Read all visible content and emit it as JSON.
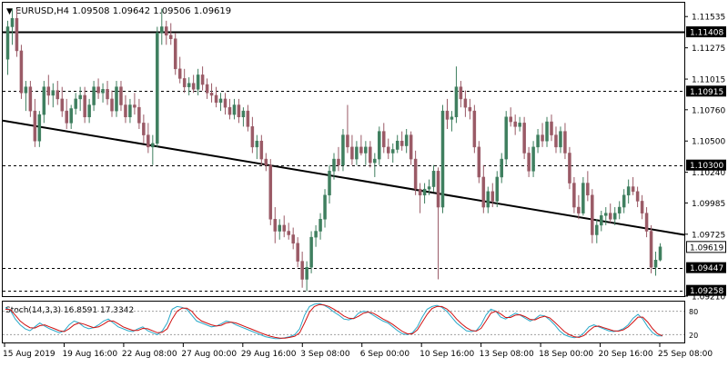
{
  "header": {
    "title": "EURUSD,H4  1.09508 1.09642 1.09506 1.09619",
    "triangle_icon": "triangle-down-icon"
  },
  "colors": {
    "background": "#ffffff",
    "frame": "#000000",
    "bull_candle": "#3f7f5f",
    "bear_candle": "#9a5a66",
    "trendline": "#000000",
    "grid_dashed": "#000000",
    "stoch_main": "#2aa9c9",
    "stoch_signal": "#d01010",
    "stoch_levels": "#a0a0a0"
  },
  "price_axis": {
    "ticks": [
      {
        "value": 1.11535,
        "label": "1.11535"
      },
      {
        "value": 1.11275,
        "label": "1.11275"
      },
      {
        "value": 1.11015,
        "label": "1.11015"
      },
      {
        "value": 1.1076,
        "label": "1.10760"
      },
      {
        "value": 1.105,
        "label": "1.10500"
      },
      {
        "value": 1.1024,
        "label": "1.10240"
      },
      {
        "value": 1.09985,
        "label": "1.09985"
      },
      {
        "value": 1.09725,
        "label": "1.09725"
      },
      {
        "value": 1.0921,
        "label": "1.09210"
      }
    ],
    "range": [
      1.0921,
      1.1165
    ]
  },
  "levels": [
    {
      "value": 1.11408,
      "label": "1.11408",
      "style": "solid"
    },
    {
      "value": 1.10915,
      "label": "1.10915",
      "style": "dashed"
    },
    {
      "value": 1.103,
      "label": "1.10300",
      "style": "dashed"
    },
    {
      "value": 1.09447,
      "label": "1.09447",
      "style": "dashed"
    },
    {
      "value": 1.09258,
      "label": "1.09258",
      "style": "dashed"
    }
  ],
  "current_price": {
    "value": 1.09619,
    "label": "1.09619"
  },
  "trendline": {
    "start_value": 1.1067,
    "end_value": 1.0972
  },
  "time_axis": {
    "labels": [
      "15 Aug 2019",
      "19 Aug 16:00",
      "22 Aug 08:00",
      "27 Aug 00:00",
      "29 Aug 16:00",
      "3 Sep 08:00",
      "6 Sep 00:00",
      "10 Sep 16:00",
      "13 Sep 08:00",
      "18 Sep 00:00",
      "20 Sep 16:00",
      "25 Sep 08:00"
    ]
  },
  "stochastic": {
    "title": "Stoch(14,3,3) 16.8591 17.3342",
    "range": [
      0,
      100
    ],
    "levels": [
      {
        "value": 80,
        "label": "80"
      },
      {
        "value": 20,
        "label": "20"
      }
    ],
    "main": [
      90,
      82,
      60,
      45,
      35,
      30,
      40,
      50,
      42,
      35,
      30,
      25,
      30,
      45,
      55,
      50,
      40,
      35,
      38,
      45,
      55,
      60,
      50,
      40,
      35,
      30,
      28,
      35,
      40,
      30,
      25,
      20,
      30,
      50,
      85,
      92,
      90,
      85,
      70,
      55,
      50,
      45,
      40,
      42,
      48,
      55,
      52,
      45,
      40,
      35,
      30,
      25,
      20,
      15,
      12,
      10,
      10,
      12,
      15,
      20,
      35,
      70,
      92,
      98,
      100,
      95,
      88,
      78,
      70,
      60,
      58,
      62,
      75,
      80,
      78,
      70,
      62,
      55,
      50,
      40,
      30,
      22,
      20,
      25,
      40,
      65,
      85,
      92,
      95,
      90,
      80,
      65,
      50,
      40,
      30,
      28,
      30,
      45,
      70,
      85,
      80,
      65,
      60,
      68,
      75,
      70,
      62,
      55,
      60,
      70,
      68,
      58,
      45,
      30,
      20,
      15,
      12,
      15,
      25,
      40,
      45,
      40,
      35,
      30,
      28,
      30,
      35,
      45,
      62,
      72,
      60,
      40,
      25,
      17,
      17
    ],
    "signal": [
      85,
      84,
      70,
      55,
      45,
      38,
      37,
      43,
      45,
      40,
      35,
      30,
      28,
      35,
      45,
      50,
      47,
      42,
      38,
      40,
      47,
      55,
      55,
      48,
      40,
      35,
      31,
      31,
      36,
      35,
      30,
      25,
      26,
      35,
      60,
      80,
      88,
      88,
      80,
      65,
      55,
      50,
      45,
      42,
      44,
      50,
      52,
      50,
      45,
      40,
      35,
      30,
      25,
      20,
      16,
      13,
      11,
      11,
      13,
      16,
      25,
      50,
      78,
      92,
      97,
      96,
      92,
      85,
      77,
      68,
      62,
      61,
      67,
      75,
      78,
      75,
      68,
      60,
      54,
      46,
      37,
      28,
      22,
      22,
      32,
      52,
      72,
      87,
      92,
      92,
      86,
      75,
      60,
      48,
      38,
      31,
      29,
      36,
      55,
      75,
      80,
      73,
      64,
      64,
      70,
      71,
      66,
      59,
      58,
      64,
      67,
      63,
      52,
      40,
      28,
      20,
      15,
      13,
      18,
      30,
      40,
      42,
      38,
      34,
      30,
      29,
      32,
      40,
      52,
      65,
      65,
      52,
      35,
      22,
      17
    ]
  },
  "candles": [
    [
      1.1118,
      1.115,
      1.1105,
      1.1145
    ],
    [
      1.1145,
      1.116,
      1.113,
      1.1152
    ],
    [
      1.1152,
      1.116,
      1.112,
      1.1125
    ],
    [
      1.1125,
      1.113,
      1.1085,
      1.109
    ],
    [
      1.109,
      1.11,
      1.1075,
      1.1095
    ],
    [
      1.1095,
      1.11,
      1.107,
      1.1075
    ],
    [
      1.1075,
      1.1085,
      1.1045,
      1.105
    ],
    [
      1.105,
      1.1075,
      1.1045,
      1.1072
    ],
    [
      1.1072,
      1.11,
      1.1065,
      1.1095
    ],
    [
      1.1095,
      1.1105,
      1.108,
      1.1088
    ],
    [
      1.1088,
      1.1098,
      1.1078,
      1.1092
    ],
    [
      1.1092,
      1.11,
      1.108,
      1.1085
    ],
    [
      1.1085,
      1.1095,
      1.107,
      1.1075
    ],
    [
      1.1075,
      1.1085,
      1.106,
      1.1065
    ],
    [
      1.1065,
      1.108,
      1.106,
      1.1077
    ],
    [
      1.1077,
      1.109,
      1.1072,
      1.1085
    ],
    [
      1.1085,
      1.1095,
      1.1075,
      1.1088
    ],
    [
      1.1088,
      1.1095,
      1.1065,
      1.107
    ],
    [
      1.107,
      1.1085,
      1.1065,
      1.108
    ],
    [
      1.108,
      1.11,
      1.1075,
      1.1095
    ],
    [
      1.1095,
      1.1102,
      1.1085,
      1.109
    ],
    [
      1.109,
      1.1098,
      1.1082,
      1.1093
    ],
    [
      1.1093,
      1.11,
      1.108,
      1.1085
    ],
    [
      1.1085,
      1.1092,
      1.107,
      1.1075
    ],
    [
      1.1075,
      1.11,
      1.107,
      1.1095
    ],
    [
      1.1095,
      1.11,
      1.1075,
      1.108
    ],
    [
      1.108,
      1.1088,
      1.1065,
      1.107
    ],
    [
      1.107,
      1.1085,
      1.1065,
      1.108
    ],
    [
      1.108,
      1.109,
      1.1072,
      1.1078
    ],
    [
      1.1078,
      1.1085,
      1.106,
      1.1065
    ],
    [
      1.1065,
      1.1072,
      1.1048,
      1.1055
    ],
    [
      1.1055,
      1.1065,
      1.104,
      1.1045
    ],
    [
      1.1045,
      1.1055,
      1.103,
      1.1048
    ],
    [
      1.1048,
      1.1145,
      1.1045,
      1.114
    ],
    [
      1.114,
      1.116,
      1.113,
      1.1145
    ],
    [
      1.1145,
      1.115,
      1.113,
      1.1138
    ],
    [
      1.1138,
      1.1148,
      1.113,
      1.1135
    ],
    [
      1.1135,
      1.114,
      1.1105,
      1.111
    ],
    [
      1.111,
      1.112,
      1.1098,
      1.1102
    ],
    [
      1.1102,
      1.111,
      1.109,
      1.1095
    ],
    [
      1.1095,
      1.1103,
      1.1088,
      1.1098
    ],
    [
      1.1098,
      1.1105,
      1.109,
      1.1093
    ],
    [
      1.1093,
      1.111,
      1.1088,
      1.1105
    ],
    [
      1.1105,
      1.1112,
      1.1092,
      1.1097
    ],
    [
      1.1097,
      1.1102,
      1.1085,
      1.109
    ],
    [
      1.109,
      1.1098,
      1.1082,
      1.1088
    ],
    [
      1.1088,
      1.1095,
      1.1078,
      1.1082
    ],
    [
      1.1082,
      1.109,
      1.1075,
      1.1085
    ],
    [
      1.1085,
      1.109,
      1.1072,
      1.1078
    ],
    [
      1.1078,
      1.1085,
      1.1068,
      1.1072
    ],
    [
      1.1072,
      1.1085,
      1.1068,
      1.108
    ],
    [
      1.108,
      1.1085,
      1.1065,
      1.107
    ],
    [
      1.107,
      1.1078,
      1.1062,
      1.1075
    ],
    [
      1.1075,
      1.108,
      1.1058,
      1.1062
    ],
    [
      1.1062,
      1.107,
      1.104,
      1.1045
    ],
    [
      1.1045,
      1.1055,
      1.1035,
      1.105
    ],
    [
      1.105,
      1.1055,
      1.103,
      1.1035
    ],
    [
      1.1035,
      1.104,
      1.1025,
      1.103
    ],
    [
      1.103,
      1.1035,
      1.098,
      1.0985
    ],
    [
      1.0985,
      1.0995,
      1.0965,
      1.0975
    ],
    [
      1.0975,
      1.0985,
      1.0968,
      1.098
    ],
    [
      1.098,
      1.0988,
      1.097,
      1.0975
    ],
    [
      1.0975,
      1.0982,
      1.0968,
      1.0972
    ],
    [
      1.0972,
      1.0978,
      1.096,
      1.0965
    ],
    [
      1.0965,
      1.097,
      1.0945,
      1.095
    ],
    [
      1.095,
      1.0958,
      1.0928,
      1.0935
    ],
    [
      1.0935,
      1.095,
      1.0925,
      1.0945
    ],
    [
      1.0945,
      1.0975,
      1.094,
      1.097
    ],
    [
      1.097,
      1.098,
      1.0962,
      1.0975
    ],
    [
      1.0975,
      1.099,
      1.0968,
      1.0985
    ],
    [
      1.0985,
      1.101,
      1.0978,
      1.1005
    ],
    [
      1.1005,
      1.103,
      1.0998,
      1.1025
    ],
    [
      1.1025,
      1.104,
      1.1018,
      1.1035
    ],
    [
      1.1035,
      1.1045,
      1.1025,
      1.103
    ],
    [
      1.103,
      1.106,
      1.1025,
      1.1055
    ],
    [
      1.1055,
      1.108,
      1.104,
      1.1045
    ],
    [
      1.1045,
      1.1055,
      1.103,
      1.1035
    ],
    [
      1.1035,
      1.105,
      1.103,
      1.1045
    ],
    [
      1.1045,
      1.1055,
      1.1038,
      1.104
    ],
    [
      1.104,
      1.105,
      1.103,
      1.1045
    ],
    [
      1.1045,
      1.105,
      1.1028,
      1.1032
    ],
    [
      1.1032,
      1.104,
      1.102,
      1.1035
    ],
    [
      1.1035,
      1.1062,
      1.103,
      1.1058
    ],
    [
      1.1058,
      1.1065,
      1.104,
      1.1045
    ],
    [
      1.1045,
      1.1052,
      1.1035,
      1.104
    ],
    [
      1.104,
      1.1048,
      1.1032,
      1.1043
    ],
    [
      1.1043,
      1.1055,
      1.104,
      1.105
    ],
    [
      1.105,
      1.1058,
      1.1042,
      1.1046
    ],
    [
      1.1046,
      1.106,
      1.104,
      1.1055
    ],
    [
      1.1055,
      1.1058,
      1.103,
      1.1035
    ],
    [
      1.1035,
      1.1042,
      1.1005,
      1.101
    ],
    [
      1.101,
      1.1015,
      1.099,
      1.1005
    ],
    [
      1.1005,
      1.1015,
      1.0998,
      1.101
    ],
    [
      1.101,
      1.1018,
      1.1005,
      1.1012
    ],
    [
      1.1012,
      1.103,
      1.1008,
      1.1025
    ],
    [
      1.1025,
      1.1028,
      1.0935,
      1.0995
    ],
    [
      1.0995,
      1.108,
      1.099,
      1.1075
    ],
    [
      1.1075,
      1.1085,
      1.106,
      1.1068
    ],
    [
      1.1068,
      1.1075,
      1.1058,
      1.107
    ],
    [
      1.107,
      1.1112,
      1.1065,
      1.1095
    ],
    [
      1.1095,
      1.11,
      1.1078,
      1.1085
    ],
    [
      1.1085,
      1.1092,
      1.107,
      1.1078
    ],
    [
      1.1078,
      1.1085,
      1.1068,
      1.1075
    ],
    [
      1.1075,
      1.108,
      1.104,
      1.1045
    ],
    [
      1.1045,
      1.105,
      1.1015,
      1.102
    ],
    [
      1.102,
      1.103,
      1.099,
      1.0995
    ],
    [
      1.0995,
      1.1012,
      1.099,
      1.1008
    ],
    [
      1.1008,
      1.1015,
      1.0995,
      1.1
    ],
    [
      1.1,
      1.1025,
      1.0995,
      1.102
    ],
    [
      1.102,
      1.104,
      1.1015,
      1.1035
    ],
    [
      1.1035,
      1.1075,
      1.103,
      1.107
    ],
    [
      1.107,
      1.1078,
      1.1062,
      1.1066
    ],
    [
      1.1066,
      1.1072,
      1.1055,
      1.1062
    ],
    [
      1.1062,
      1.107,
      1.1058,
      1.1065
    ],
    [
      1.1065,
      1.107,
      1.1035,
      1.104
    ],
    [
      1.104,
      1.1045,
      1.102,
      1.1025
    ],
    [
      1.1025,
      1.105,
      1.102,
      1.1045
    ],
    [
      1.1045,
      1.106,
      1.104,
      1.1055
    ],
    [
      1.1055,
      1.1065,
      1.1045,
      1.105
    ],
    [
      1.105,
      1.107,
      1.1045,
      1.1066
    ],
    [
      1.1066,
      1.1072,
      1.105,
      1.1055
    ],
    [
      1.1055,
      1.1062,
      1.104,
      1.1045
    ],
    [
      1.1045,
      1.1062,
      1.104,
      1.1058
    ],
    [
      1.1058,
      1.1065,
      1.1035,
      1.104
    ],
    [
      1.104,
      1.1045,
      1.101,
      1.1015
    ],
    [
      1.1015,
      1.102,
      1.099,
      1.0995
    ],
    [
      1.0995,
      1.1005,
      1.0985,
      1.099
    ],
    [
      1.099,
      1.102,
      1.0988,
      1.1015
    ],
    [
      1.1015,
      1.1025,
      1.1,
      1.1005
    ],
    [
      1.1005,
      1.101,
      1.0965,
      1.0972
    ],
    [
      1.0972,
      1.0985,
      1.0965,
      1.098
    ],
    [
      1.098,
      1.0992,
      1.0975,
      1.0988
    ],
    [
      1.0988,
      1.0995,
      1.098,
      1.099
    ],
    [
      1.099,
      1.0998,
      1.0982,
      1.0985
    ],
    [
      1.0985,
      1.0995,
      1.098,
      1.099
    ],
    [
      1.099,
      1.1,
      1.0985,
      1.0995
    ],
    [
      1.0995,
      1.101,
      1.099,
      1.1005
    ],
    [
      1.1005,
      1.1018,
      1.0998,
      1.1012
    ],
    [
      1.1012,
      1.102,
      1.1005,
      1.1008
    ],
    [
      1.1008,
      1.1012,
      1.0995,
      1.1
    ],
    [
      1.1,
      1.1005,
      1.0985,
      1.099
    ],
    [
      1.099,
      1.0995,
      1.097,
      1.0975
    ],
    [
      1.0975,
      1.098,
      1.094,
      1.0945
    ],
    [
      1.0945,
      1.0958,
      1.0938,
      1.0951
    ],
    [
      1.0951,
      1.0965,
      1.095,
      1.0962
    ]
  ]
}
